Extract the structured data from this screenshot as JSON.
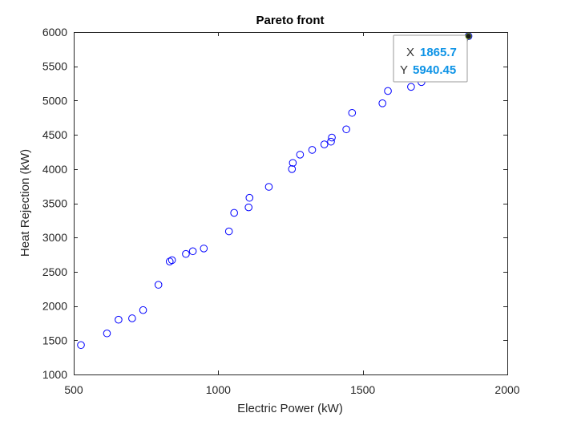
{
  "chart_data": {
    "type": "scatter",
    "title": "Pareto front",
    "xlabel": "Electric Power (kW)",
    "ylabel": "Heat Rejection (kW)",
    "xlim": [
      500,
      2000
    ],
    "ylim": [
      1000,
      6000
    ],
    "xticks": [
      500,
      1000,
      1500,
      2000
    ],
    "yticks": [
      1000,
      1500,
      2000,
      2500,
      3000,
      3500,
      4000,
      4500,
      5000,
      5500,
      6000
    ],
    "grid": false,
    "marker": "open-circle",
    "marker_color": "#0000ff",
    "series": [
      {
        "x": [
          525,
          615,
          655,
          702,
          740,
          793,
          832,
          840,
          888,
          912,
          950,
          1037,
          1055,
          1105,
          1108,
          1175,
          1255,
          1258,
          1283,
          1325,
          1367,
          1390,
          1393,
          1443,
          1463,
          1568,
          1587,
          1667,
          1703,
          1865.7
        ],
        "y": [
          1430,
          1600,
          1800,
          1820,
          1940,
          2310,
          2650,
          2670,
          2760,
          2800,
          2840,
          3090,
          3360,
          3440,
          3580,
          3740,
          4000,
          4090,
          4210,
          4280,
          4360,
          4400,
          4460,
          4580,
          4820,
          4960,
          5140,
          5200,
          5270,
          5940.45
        ]
      }
    ],
    "datatip": {
      "x_key": "X",
      "x_value": "1865.7",
      "y_key": "Y",
      "y_value": "5940.45"
    }
  }
}
